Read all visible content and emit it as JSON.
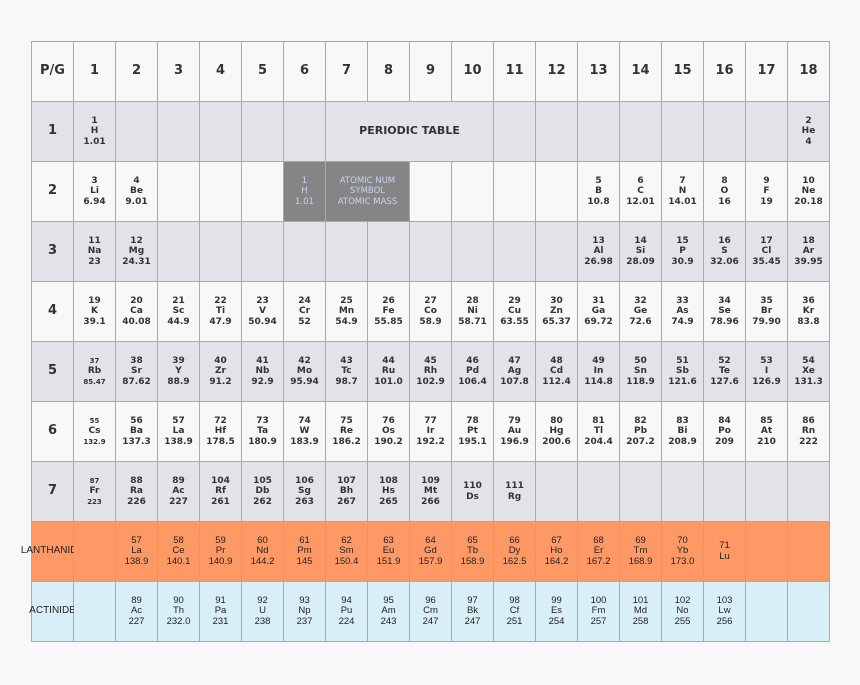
{
  "colors": {
    "row_light": "#f8f8f8",
    "row_gray": "#e3e2e8",
    "lanthanide": "#fe9966",
    "actinide": "#d9eff8",
    "key": "#858585",
    "border": "#a8a4c4"
  },
  "header": {
    "corner": "P/G",
    "groups": [
      "1",
      "2",
      "3",
      "4",
      "5",
      "6",
      "7",
      "8",
      "9",
      "10",
      "11",
      "12",
      "13",
      "14",
      "15",
      "16",
      "17",
      "18"
    ]
  },
  "title": "PERIODIC TABLE",
  "key": {
    "sample": [
      "1",
      "H",
      "1.01"
    ],
    "legend": [
      "ATOMIC NUM",
      "SYMBOL",
      "ATOMIC MASS"
    ]
  },
  "periods": [
    {
      "label": "1",
      "cells": [
        [
          "1",
          "H",
          "1.01"
        ],
        null,
        null,
        null,
        null,
        null,
        "TITLE",
        null,
        null,
        null,
        null,
        null,
        null,
        null,
        null,
        null,
        null,
        [
          "2",
          "He",
          "4"
        ]
      ]
    },
    {
      "label": "2",
      "cells": [
        [
          "3",
          "Li",
          "6.94"
        ],
        [
          "4",
          "Be",
          "9.01"
        ],
        null,
        null,
        null,
        "KEY",
        "LEGEND",
        null,
        null,
        null,
        null,
        null,
        [
          "5",
          "B",
          "10.8"
        ],
        [
          "6",
          "C",
          "12.01"
        ],
        [
          "7",
          "N",
          "14.01"
        ],
        [
          "8",
          "O",
          "16"
        ],
        [
          "9",
          "F",
          "19"
        ],
        [
          "10",
          "Ne",
          "20.18"
        ]
      ]
    },
    {
      "label": "3",
      "cells": [
        [
          "11",
          "Na",
          "23"
        ],
        [
          "12",
          "Mg",
          "24.31"
        ],
        null,
        null,
        null,
        null,
        null,
        null,
        null,
        null,
        null,
        null,
        [
          "13",
          "Al",
          "26.98"
        ],
        [
          "14",
          "Si",
          "28.09"
        ],
        [
          "15",
          "P",
          "30.9"
        ],
        [
          "16",
          "S",
          "32.06"
        ],
        [
          "17",
          "Cl",
          "35.45"
        ],
        [
          "18",
          "Ar",
          "39.95"
        ]
      ]
    },
    {
      "label": "4",
      "cells": [
        [
          "19",
          "K",
          "39.1"
        ],
        [
          "20",
          "Ca",
          "40.08"
        ],
        [
          "21",
          "Sc",
          "44.9"
        ],
        [
          "22",
          "Ti",
          "47.9"
        ],
        [
          "23",
          "V",
          "50.94"
        ],
        [
          "24",
          "Cr",
          "52"
        ],
        [
          "25",
          "Mn",
          "54.9"
        ],
        [
          "26",
          "Fe",
          "55.85"
        ],
        [
          "27",
          "Co",
          "58.9"
        ],
        [
          "28",
          "Ni",
          "58.71"
        ],
        [
          "29",
          "Cu",
          "63.55"
        ],
        [
          "30",
          "Zn",
          "65.37"
        ],
        [
          "31",
          "Ga",
          "69.72"
        ],
        [
          "32",
          "Ge",
          "72.6"
        ],
        [
          "33",
          "As",
          "74.9"
        ],
        [
          "34",
          "Se",
          "78.96"
        ],
        [
          "35",
          "Br",
          "79.90"
        ],
        [
          "36",
          "Kr",
          "83.8"
        ]
      ]
    },
    {
      "label": "5",
      "cells": [
        [
          "37",
          "Rb",
          "85.47"
        ],
        [
          "38",
          "Sr",
          "87.62"
        ],
        [
          "39",
          "Y",
          "88.9"
        ],
        [
          "40",
          "Zr",
          "91.2"
        ],
        [
          "41",
          "Nb",
          "92.9"
        ],
        [
          "42",
          "Mo",
          "95.94"
        ],
        [
          "43",
          "Tc",
          "98.7"
        ],
        [
          "44",
          "Ru",
          "101.0"
        ],
        [
          "45",
          "Rh",
          "102.9"
        ],
        [
          "46",
          "Pd",
          "106.4"
        ],
        [
          "47",
          "Ag",
          "107.8"
        ],
        [
          "48",
          "Cd",
          "112.4"
        ],
        [
          "49",
          "In",
          "114.8"
        ],
        [
          "50",
          "Sn",
          "118.9"
        ],
        [
          "51",
          "Sb",
          "121.6"
        ],
        [
          "52",
          "Te",
          "127.6"
        ],
        [
          "53",
          "I",
          "126.9"
        ],
        [
          "54",
          "Xe",
          "131.3"
        ]
      ]
    },
    {
      "label": "6",
      "cells": [
        [
          "55",
          "Cs",
          "132.9"
        ],
        [
          "56",
          "Ba",
          "137.3"
        ],
        [
          "57",
          "La",
          "138.9"
        ],
        [
          "72",
          "Hf",
          "178.5"
        ],
        [
          "73",
          "Ta",
          "180.9"
        ],
        [
          "74",
          "W",
          "183.9"
        ],
        [
          "75",
          "Re",
          "186.2"
        ],
        [
          "76",
          "Os",
          "190.2"
        ],
        [
          "77",
          "Ir",
          "192.2"
        ],
        [
          "78",
          "Pt",
          "195.1"
        ],
        [
          "79",
          "Au",
          "196.9"
        ],
        [
          "80",
          "Hg",
          "200.6"
        ],
        [
          "81",
          "Tl",
          "204.4"
        ],
        [
          "82",
          "Pb",
          "207.2"
        ],
        [
          "83",
          "Bi",
          "208.9"
        ],
        [
          "84",
          "Po",
          "209"
        ],
        [
          "85",
          "At",
          "210"
        ],
        [
          "86",
          "Rn",
          "222"
        ]
      ]
    },
    {
      "label": "7",
      "cells": [
        [
          "87",
          "Fr",
          "223"
        ],
        [
          "88",
          "Ra",
          "226"
        ],
        [
          "89",
          "Ac",
          "227"
        ],
        [
          "104",
          "Rf",
          "261"
        ],
        [
          "105",
          "Db",
          "262"
        ],
        [
          "106",
          "Sg",
          "263"
        ],
        [
          "107",
          "Bh",
          "267"
        ],
        [
          "108",
          "Hs",
          "265"
        ],
        [
          "109",
          "Mt",
          "266"
        ],
        [
          "110",
          "Ds"
        ],
        [
          "111",
          "Rg"
        ],
        null,
        null,
        null,
        null,
        null,
        null,
        null
      ]
    },
    {
      "label": "LANTHANIDE",
      "cells": [
        null,
        [
          "57",
          "La",
          "138.9"
        ],
        [
          "58",
          "Ce",
          "140.1"
        ],
        [
          "59",
          "Pr",
          "140.9"
        ],
        [
          "60",
          "Nd",
          "144.2"
        ],
        [
          "61",
          "Pm",
          "145"
        ],
        [
          "62",
          "Sm",
          "150.4"
        ],
        [
          "63",
          "Eu",
          "151.9"
        ],
        [
          "64",
          "Gd",
          "157.9"
        ],
        [
          "65",
          "Tb",
          "158.9"
        ],
        [
          "66",
          "Dy",
          "162.5"
        ],
        [
          "67",
          "Ho",
          "164.2"
        ],
        [
          "68",
          "Er",
          "167.2"
        ],
        [
          "69",
          "Tm",
          "168.9"
        ],
        [
          "70",
          "Yb",
          "173.0"
        ],
        [
          "71",
          "Lu"
        ],
        null,
        null
      ]
    },
    {
      "label": "ACTINIDE",
      "cells": [
        null,
        [
          "89",
          "Ac",
          "227"
        ],
        [
          "90",
          "Th",
          "232.0"
        ],
        [
          "91",
          "Pa",
          "231"
        ],
        [
          "92",
          "U",
          "238"
        ],
        [
          "93",
          "Np",
          "237"
        ],
        [
          "94",
          "Pu",
          "224"
        ],
        [
          "95",
          "Am",
          "243"
        ],
        [
          "96",
          "Cm",
          "247"
        ],
        [
          "97",
          "Bk",
          "247"
        ],
        [
          "98",
          "Cf",
          "251"
        ],
        [
          "99",
          "Es",
          "254"
        ],
        [
          "100",
          "Fm",
          "257"
        ],
        [
          "101",
          "Md",
          "258"
        ],
        [
          "102",
          "No",
          "255"
        ],
        [
          "103",
          "Lw",
          "256"
        ],
        null,
        null
      ]
    }
  ]
}
